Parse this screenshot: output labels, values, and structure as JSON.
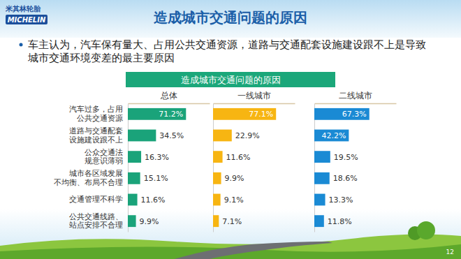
{
  "logo": {
    "cn": "米其林轮胎",
    "en": "MICHELIN"
  },
  "slide_title": "造成城市交通问题的原因",
  "bullet_lines": [
    "车主认为，汽车保有量大、占用公共交通资源，道路与交通配套设施建设跟不上是导致",
    "城市交通环境变差的最主要原因"
  ],
  "chart_data": {
    "type": "bar",
    "orientation": "horizontal",
    "title": "造成城市交通问题的原因",
    "categories": [
      "汽车过多，占用\n公共交通资源",
      "道路与交通配套\n设施建设跟不上",
      "公众交通法\n规意识薄弱",
      "城市各区域发展\n不均衡、布局不合理",
      "交通管理不科学",
      "公共交通线路、\n站点安排不合理"
    ],
    "series": [
      {
        "name": "总体",
        "color": "#1aa37a",
        "values": [
          71.2,
          34.5,
          16.3,
          15.1,
          11.6,
          9.9
        ],
        "value_labels": [
          "71.2%",
          "34.5%",
          "16.3%",
          "15.1%",
          "11.6%",
          "9.9%"
        ]
      },
      {
        "name": "一线城市",
        "color": "#f7b512",
        "values": [
          77.1,
          22.9,
          11.6,
          9.9,
          9.1,
          7.1
        ],
        "value_labels": [
          "77.1%",
          "22.9%",
          "11.6%",
          "9.9%",
          "9.1%",
          "7.1%"
        ]
      },
      {
        "name": "二线城市",
        "color": "#1a8ad4",
        "values": [
          67.3,
          42.2,
          19.5,
          18.6,
          13.3,
          11.8
        ],
        "value_labels": [
          "67.3%",
          "42.2%",
          "19.5%",
          "18.6%",
          "13.3%",
          "11.8%"
        ]
      }
    ],
    "xlim": [
      0,
      100
    ],
    "data_labels": true,
    "tick_labels": "y"
  },
  "page_number": "12"
}
